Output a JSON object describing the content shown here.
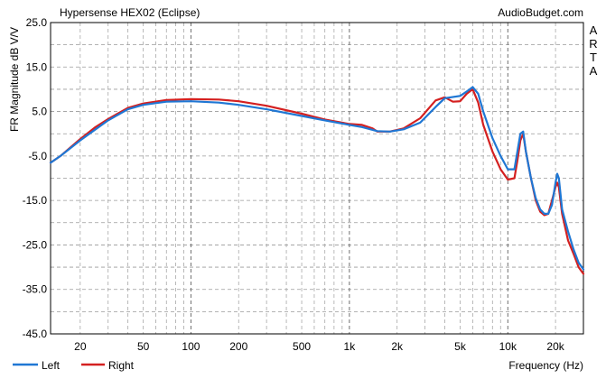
{
  "chart_data": {
    "type": "line",
    "title": "Hypersense HEX02 (Eclipse)",
    "source_label": "AudioBudget.com",
    "side_label": [
      "A",
      "R",
      "T",
      "A"
    ],
    "ylabel": "FR Magnitude dB V/V",
    "xlabel": "Frequency (Hz)",
    "x_scale": "log",
    "xlim": [
      13,
      30000
    ],
    "ylim": [
      -45,
      25
    ],
    "y_ticks": [
      25.0,
      15.0,
      5.0,
      -5.0,
      -15.0,
      -25.0,
      -35.0,
      -45.0
    ],
    "y_tick_labels": [
      "25.0",
      "15.0",
      "5.0",
      "-5.0",
      "-15.0",
      "-25.0",
      "-35.0",
      "-45.0"
    ],
    "x_ticks": [
      20,
      50,
      100,
      200,
      500,
      1000,
      2000,
      5000,
      10000,
      20000
    ],
    "x_tick_labels": [
      "20",
      "50",
      "100",
      "200",
      "500",
      "1k",
      "2k",
      "5k",
      "10k",
      "20k"
    ],
    "grid": true,
    "legend_position": "bottom-left",
    "series": [
      {
        "name": "Left",
        "color": "#1f77d4",
        "points": [
          [
            13,
            -6.5
          ],
          [
            15,
            -5
          ],
          [
            20,
            -1.5
          ],
          [
            25,
            1
          ],
          [
            30,
            3
          ],
          [
            40,
            5.5
          ],
          [
            50,
            6.5
          ],
          [
            70,
            7.2
          ],
          [
            100,
            7.3
          ],
          [
            150,
            7
          ],
          [
            200,
            6.5
          ],
          [
            300,
            5.5
          ],
          [
            500,
            4
          ],
          [
            700,
            3
          ],
          [
            1000,
            2
          ],
          [
            1200,
            1.5
          ],
          [
            1500,
            0.6
          ],
          [
            1800,
            0.5
          ],
          [
            2200,
            1
          ],
          [
            2800,
            2.5
          ],
          [
            3500,
            6
          ],
          [
            4000,
            8
          ],
          [
            5000,
            8.5
          ],
          [
            5500,
            9.5
          ],
          [
            6000,
            10.5
          ],
          [
            6500,
            9
          ],
          [
            7000,
            5
          ],
          [
            8000,
            -1
          ],
          [
            9000,
            -5
          ],
          [
            10000,
            -8
          ],
          [
            11000,
            -8
          ],
          [
            11500,
            -4
          ],
          [
            12000,
            0
          ],
          [
            12500,
            0.5
          ],
          [
            13000,
            -4
          ],
          [
            14000,
            -10
          ],
          [
            15000,
            -14.5
          ],
          [
            16000,
            -17
          ],
          [
            17000,
            -18
          ],
          [
            18000,
            -18
          ],
          [
            19000,
            -16
          ],
          [
            20000,
            -11
          ],
          [
            20500,
            -9
          ],
          [
            21000,
            -10
          ],
          [
            22000,
            -17
          ],
          [
            24000,
            -22
          ],
          [
            26000,
            -26
          ],
          [
            28000,
            -29
          ],
          [
            30000,
            -30.5
          ]
        ]
      },
      {
        "name": "Right",
        "color": "#d42020",
        "points": [
          [
            13,
            -6.5
          ],
          [
            15,
            -5
          ],
          [
            20,
            -1.2
          ],
          [
            25,
            1.5
          ],
          [
            30,
            3.3
          ],
          [
            40,
            5.8
          ],
          [
            50,
            6.8
          ],
          [
            70,
            7.6
          ],
          [
            100,
            7.8
          ],
          [
            150,
            7.7
          ],
          [
            200,
            7.3
          ],
          [
            300,
            6.3
          ],
          [
            500,
            4.5
          ],
          [
            700,
            3.2
          ],
          [
            1000,
            2.2
          ],
          [
            1200,
            2
          ],
          [
            1400,
            1.2
          ],
          [
            1500,
            0.5
          ],
          [
            1800,
            0.5
          ],
          [
            2200,
            1.2
          ],
          [
            2800,
            3.5
          ],
          [
            3500,
            7.5
          ],
          [
            4000,
            8.2
          ],
          [
            4500,
            7.2
          ],
          [
            5000,
            7.3
          ],
          [
            5500,
            9
          ],
          [
            6000,
            10
          ],
          [
            6500,
            7
          ],
          [
            7000,
            2
          ],
          [
            8000,
            -4
          ],
          [
            9000,
            -8
          ],
          [
            10000,
            -10.3
          ],
          [
            11000,
            -10
          ],
          [
            11500,
            -6
          ],
          [
            12000,
            -1.5
          ],
          [
            12500,
            0
          ],
          [
            13000,
            -4
          ],
          [
            14000,
            -10
          ],
          [
            15000,
            -15
          ],
          [
            16000,
            -17.5
          ],
          [
            17000,
            -18.3
          ],
          [
            18000,
            -18
          ],
          [
            19000,
            -15
          ],
          [
            20000,
            -12
          ],
          [
            20500,
            -11
          ],
          [
            21000,
            -12
          ],
          [
            22000,
            -18
          ],
          [
            24000,
            -24
          ],
          [
            26000,
            -27
          ],
          [
            28000,
            -30
          ],
          [
            30000,
            -31.5
          ]
        ]
      }
    ]
  }
}
